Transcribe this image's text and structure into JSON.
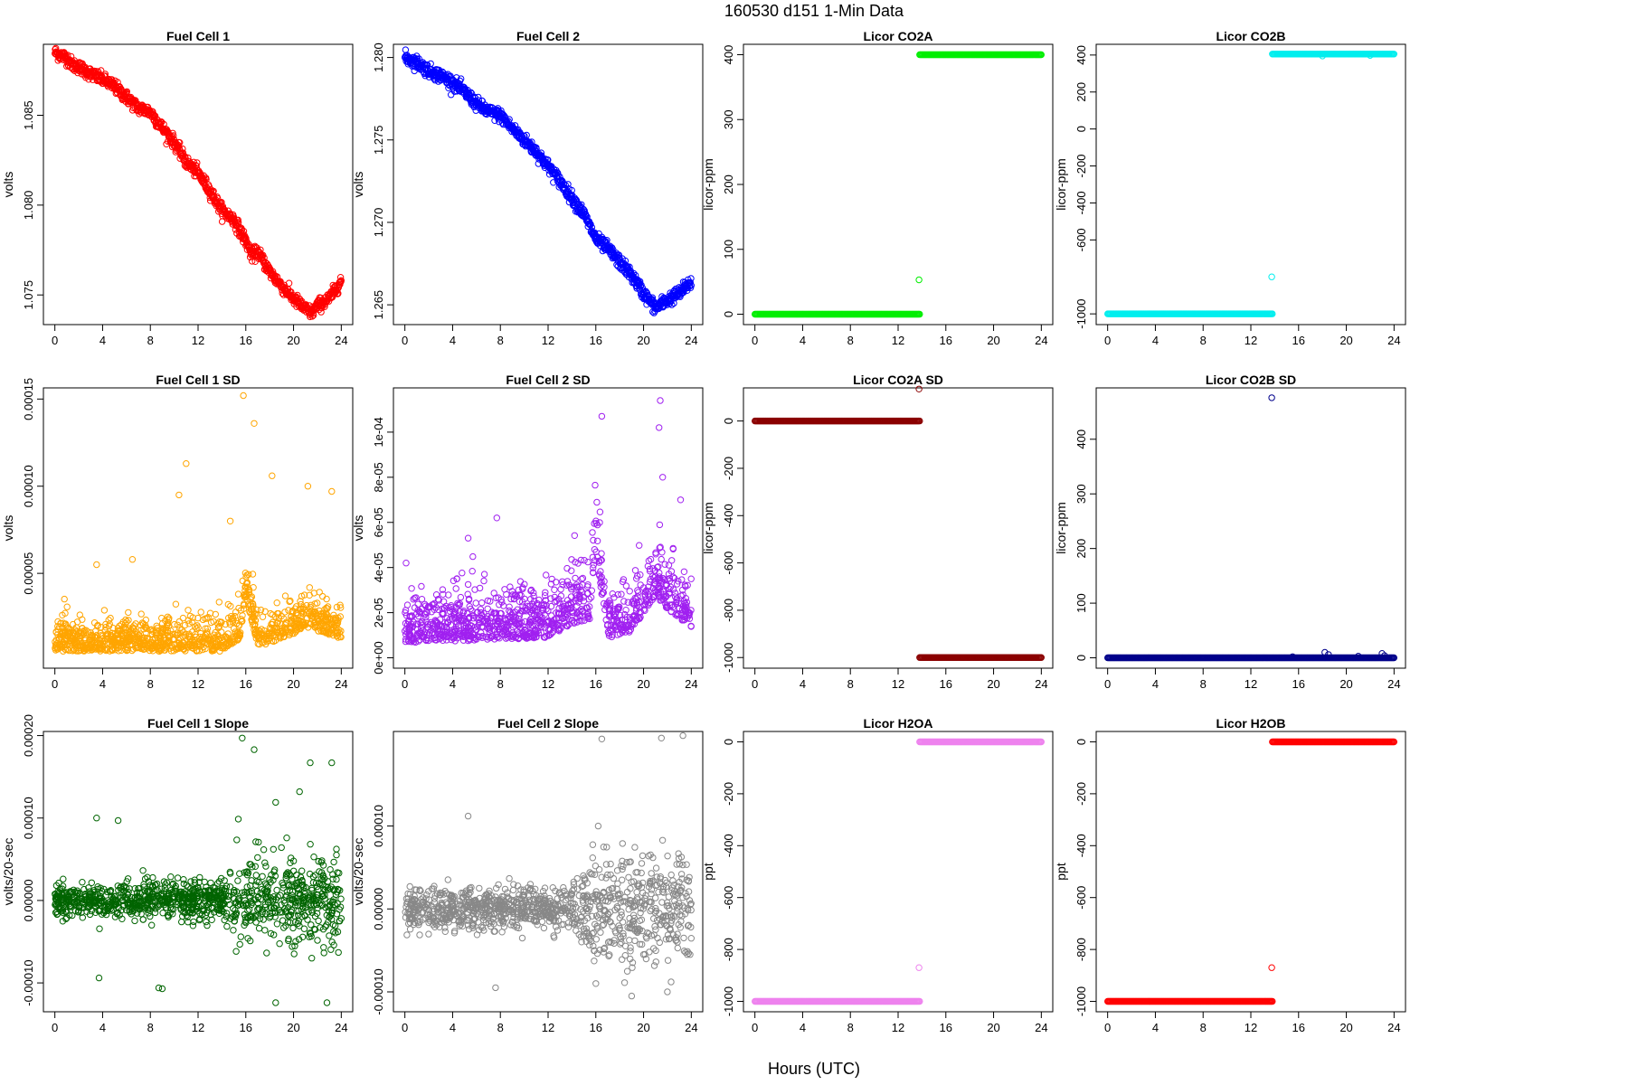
{
  "figure": {
    "title": "160530    d151    1-Min Data",
    "xlabel": "Hours (UTC)"
  },
  "chart_data": [
    {
      "type": "scatter",
      "title": "Fuel Cell 1",
      "ylabel": "volts",
      "color": "#ff0000",
      "xlim": [
        -0.96,
        24.96
      ],
      "ylim": [
        1.07335,
        1.08895
      ],
      "xticks": [
        0,
        4,
        8,
        12,
        16,
        20,
        24
      ],
      "yticks": [
        1.075,
        1.08,
        1.085
      ],
      "ytick_labels": [
        "1.075",
        "1.080",
        "1.085"
      ],
      "trend": [
        [
          0,
          1.0885
        ],
        [
          1,
          1.0882
        ],
        [
          1.5,
          1.0878
        ],
        [
          2,
          1.0877
        ],
        [
          3,
          1.0873
        ],
        [
          4,
          1.087
        ],
        [
          5,
          1.0866
        ],
        [
          6,
          1.086
        ],
        [
          7,
          1.0854
        ],
        [
          8,
          1.0852
        ],
        [
          9,
          1.0843
        ],
        [
          10,
          1.0835
        ],
        [
          11,
          1.0824
        ],
        [
          12,
          1.0818
        ],
        [
          13,
          1.0808
        ],
        [
          14,
          1.0797
        ],
        [
          15,
          1.0792
        ],
        [
          16,
          1.078
        ],
        [
          16.5,
          1.0772
        ],
        [
          17,
          1.0774
        ],
        [
          18,
          1.0763
        ],
        [
          19,
          1.0755
        ],
        [
          20,
          1.0748
        ],
        [
          21,
          1.0742
        ],
        [
          21.5,
          1.074
        ],
        [
          22,
          1.0744
        ],
        [
          23,
          1.0748
        ],
        [
          24,
          1.0758
        ]
      ],
      "noise": 0.00018,
      "markers": "band"
    },
    {
      "type": "scatter",
      "title": "Fuel Cell 2",
      "ylabel": "volts",
      "color": "#0000ff",
      "xlim": [
        -0.96,
        24.96
      ],
      "ylim": [
        1.2638,
        1.2808
      ],
      "xticks": [
        0,
        4,
        8,
        12,
        16,
        20,
        24
      ],
      "yticks": [
        1.265,
        1.27,
        1.275,
        1.28
      ],
      "ytick_labels": [
        "1.265",
        "1.270",
        "1.275",
        "1.280"
      ],
      "trend": [
        [
          0,
          1.28
        ],
        [
          1,
          1.2797
        ],
        [
          2,
          1.2792
        ],
        [
          3,
          1.2789
        ],
        [
          4,
          1.2785
        ],
        [
          5,
          1.2779
        ],
        [
          6,
          1.2772
        ],
        [
          7,
          1.2767
        ],
        [
          8,
          1.2765
        ],
        [
          9,
          1.2757
        ],
        [
          10,
          1.275
        ],
        [
          11,
          1.2743
        ],
        [
          12,
          1.2734
        ],
        [
          13,
          1.2725
        ],
        [
          14,
          1.2715
        ],
        [
          15,
          1.2705
        ],
        [
          16,
          1.269
        ],
        [
          17,
          1.2684
        ],
        [
          18,
          1.2676
        ],
        [
          19,
          1.2668
        ],
        [
          20,
          1.2657
        ],
        [
          21,
          1.2648
        ],
        [
          22,
          1.2653
        ],
        [
          23,
          1.2657
        ],
        [
          24,
          1.2664
        ]
      ],
      "noise": 0.0002,
      "markers": "band"
    },
    {
      "type": "scatter",
      "title": "Licor CO2A",
      "ylabel": "licor-ppm",
      "color": "#00ee00",
      "xlim": [
        -0.96,
        24.96
      ],
      "ylim": [
        -16,
        416
      ],
      "xticks": [
        0,
        4,
        8,
        12,
        16,
        20,
        24
      ],
      "yticks": [
        0,
        100,
        200,
        300,
        400
      ],
      "ytick_labels": [
        "0",
        "100",
        "200",
        "300",
        "400"
      ],
      "segments": [
        {
          "x": [
            0,
            13.8
          ],
          "y": 0
        },
        {
          "x": [
            13.8,
            24
          ],
          "y": 400
        }
      ],
      "outliers": [
        [
          13.75,
          53
        ]
      ]
    },
    {
      "type": "scatter",
      "title": "Licor CO2B",
      "ylabel": "licor-ppm",
      "color": "#00eeee",
      "xlim": [
        -0.96,
        24.96
      ],
      "ylim": [
        -1058,
        458
      ],
      "xticks": [
        0,
        4,
        8,
        12,
        16,
        20,
        24
      ],
      "yticks": [
        -1000,
        -600,
        -400,
        -200,
        0,
        200,
        400
      ],
      "ytick_labels": [
        "-1000",
        "-600",
        "-400",
        "-200",
        "0",
        "200",
        "400"
      ],
      "segments": [
        {
          "x": [
            0,
            13.8
          ],
          "y": -1000
        },
        {
          "x": [
            13.8,
            24
          ],
          "y": 405
        }
      ],
      "outliers": [
        [
          13.75,
          -800
        ],
        [
          18,
          395
        ],
        [
          22,
          398
        ]
      ]
    },
    {
      "type": "scatter",
      "title": "Fuel Cell 1 SD",
      "ylabel": "volts",
      "color": "#ffa500",
      "xlim": [
        -0.96,
        24.96
      ],
      "ylim": [
        -4.4e-06,
        0.0001564
      ],
      "xticks": [
        0,
        4,
        8,
        12,
        16,
        20,
        24
      ],
      "yticks": [
        5e-05,
        0.0001,
        0.00015
      ],
      "ytick_labels": [
        "0.00005",
        "0.00010",
        "0.00015"
      ],
      "cloud_baseline": [
        [
          0,
          8e-06
        ],
        [
          14,
          8e-06
        ],
        [
          15.5,
          1.5e-05
        ],
        [
          16,
          4e-05
        ],
        [
          17,
          1e-05
        ],
        [
          20,
          1.8e-05
        ],
        [
          21,
          2.2e-05
        ],
        [
          24,
          1.5e-05
        ]
      ],
      "cloud_spread": 1.8e-05,
      "outliers": [
        [
          15.8,
          0.000152
        ],
        [
          16.7,
          0.000136
        ],
        [
          11.0,
          0.000113
        ],
        [
          10.4,
          9.5e-05
        ],
        [
          18.2,
          0.000106
        ],
        [
          21.2,
          0.0001
        ],
        [
          23.2,
          9.7e-05
        ],
        [
          6.5,
          5.8e-05
        ],
        [
          3.5,
          5.5e-05
        ],
        [
          14.7,
          8e-05
        ]
      ]
    },
    {
      "type": "scatter",
      "title": "Fuel Cell 2 SD",
      "ylabel": "volts",
      "color": "#a020f0",
      "xlim": [
        -0.96,
        24.96
      ],
      "ylim": [
        -4.6e-06,
        0.0001196
      ],
      "xticks": [
        0,
        4,
        8,
        12,
        16,
        20,
        24
      ],
      "yticks": [
        0,
        2e-05,
        4e-05,
        6e-05,
        8e-05,
        0.0001
      ],
      "ytick_labels": [
        "0e+00",
        "2e-05",
        "4e-05",
        "6e-05",
        "8e-05",
        "1e-04"
      ],
      "cloud_baseline": [
        [
          0,
          1e-05
        ],
        [
          12,
          1.2e-05
        ],
        [
          14,
          1.8e-05
        ],
        [
          15.5,
          2e-05
        ],
        [
          16,
          5e-05
        ],
        [
          17,
          1.2e-05
        ],
        [
          19,
          1.5e-05
        ],
        [
          21,
          3e-05
        ],
        [
          22,
          2.5e-05
        ],
        [
          24,
          1.5e-05
        ]
      ],
      "cloud_spread": 2.2e-05,
      "outliers": [
        [
          16.5,
          0.000107
        ],
        [
          21.4,
          0.000114
        ],
        [
          21.3,
          0.000102
        ],
        [
          21.6,
          8e-05
        ],
        [
          23.1,
          7e-05
        ],
        [
          7.7,
          6.2e-05
        ],
        [
          5.3,
          5.3e-05
        ],
        [
          0.1,
          4.2e-05
        ]
      ]
    },
    {
      "type": "scatter",
      "title": "Licor CO2A SD",
      "ylabel": "licor-ppm",
      "color": "#8b0000",
      "xlim": [
        -0.96,
        24.96
      ],
      "ylim": [
        -1045,
        140
      ],
      "xticks": [
        0,
        4,
        8,
        12,
        16,
        20,
        24
      ],
      "yticks": [
        -1000,
        -800,
        -600,
        -400,
        -200,
        0
      ],
      "ytick_labels": [
        "-1000",
        "-800",
        "-600",
        "-400",
        "-200",
        "0"
      ],
      "segments": [
        {
          "x": [
            0,
            13.8
          ],
          "y": 0
        },
        {
          "x": [
            13.8,
            24
          ],
          "y": -1000
        }
      ],
      "outliers": [
        [
          13.75,
          135
        ]
      ]
    },
    {
      "type": "scatter",
      "title": "Licor CO2B SD",
      "ylabel": "licor-ppm",
      "color": "#00008b",
      "xlim": [
        -0.96,
        24.96
      ],
      "ylim": [
        -19,
        494
      ],
      "xticks": [
        0,
        4,
        8,
        12,
        16,
        20,
        24
      ],
      "yticks": [
        0,
        100,
        200,
        300,
        400
      ],
      "ytick_labels": [
        "0",
        "100",
        "200",
        "300",
        "400"
      ],
      "segments": [
        {
          "x": [
            0,
            24
          ],
          "y": 0
        }
      ],
      "outliers": [
        [
          13.75,
          476
        ],
        [
          18.2,
          10
        ],
        [
          18.5,
          6
        ],
        [
          23.0,
          8
        ],
        [
          23.2,
          4
        ],
        [
          15.5,
          2
        ],
        [
          21,
          3
        ]
      ]
    },
    {
      "type": "scatter",
      "title": "Fuel Cell 1 Slope",
      "ylabel": "volts/20-sec",
      "color": "#006400",
      "xlim": [
        -0.96,
        24.96
      ],
      "ylim": [
        -0.000135,
        0.000205
      ],
      "xticks": [
        0,
        4,
        8,
        12,
        16,
        20,
        24
      ],
      "yticks": [
        -0.0001,
        0,
        0.0001,
        0.0002
      ],
      "ytick_labels": [
        "-0.00010",
        "0.00000",
        "0.00010",
        "0.00020"
      ],
      "cloud_baseline": [
        [
          0,
          0
        ],
        [
          24,
          0
        ]
      ],
      "cloud_spread_profile": [
        [
          0,
          2e-05
        ],
        [
          14,
          2e-05
        ],
        [
          15.5,
          5e-05
        ],
        [
          24,
          5e-05
        ]
      ],
      "outliers": [
        [
          15.7,
          0.000197
        ],
        [
          16.7,
          0.000183
        ],
        [
          21.4,
          0.000167
        ],
        [
          23.2,
          0.000167
        ],
        [
          20.5,
          0.000132
        ],
        [
          18.5,
          0.000119
        ],
        [
          3.5,
          0.0001
        ],
        [
          5.3,
          9.7e-05
        ],
        [
          8.7,
          -0.000106
        ],
        [
          9,
          -0.000107
        ],
        [
          3.7,
          -9.4e-05
        ],
        [
          18.5,
          -0.000124
        ],
        [
          22.8,
          -0.000124
        ]
      ]
    },
    {
      "type": "scatter",
      "title": "Fuel Cell 2 Slope",
      "ylabel": "volts/20-sec",
      "color": "#888888",
      "xlim": [
        -0.96,
        24.96
      ],
      "ylim": [
        -0.000124,
        0.000214
      ],
      "xticks": [
        0,
        4,
        8,
        12,
        16,
        20,
        24
      ],
      "yticks": [
        -0.0001,
        0,
        0.0001
      ],
      "ytick_labels": [
        "-0.00010",
        "0.00000",
        "0.00010"
      ],
      "cloud_baseline": [
        [
          0,
          0
        ],
        [
          24,
          0
        ]
      ],
      "cloud_spread_profile": [
        [
          0,
          2.2e-05
        ],
        [
          14,
          2.5e-05
        ],
        [
          15.5,
          5.5e-05
        ],
        [
          24,
          5.5e-05
        ]
      ],
      "outliers": [
        [
          16.5,
          0.000205
        ],
        [
          21.5,
          0.000206
        ],
        [
          23.3,
          0.000209
        ],
        [
          5.3,
          0.000112
        ],
        [
          16.2,
          0.0001
        ],
        [
          7.6,
          -9.5e-05
        ],
        [
          19,
          -0.000105
        ],
        [
          16,
          -9e-05
        ],
        [
          22,
          -0.0001
        ]
      ]
    },
    {
      "type": "scatter",
      "title": "Licor H2OA",
      "ylabel": "ppt",
      "color": "#ee82ee",
      "xlim": [
        -0.96,
        24.96
      ],
      "ylim": [
        -1040,
        40
      ],
      "xticks": [
        0,
        4,
        8,
        12,
        16,
        20,
        24
      ],
      "yticks": [
        -1000,
        -800,
        -600,
        -400,
        -200,
        0
      ],
      "ytick_labels": [
        "-1000",
        "-800",
        "-600",
        "-400",
        "-200",
        "0"
      ],
      "segments": [
        {
          "x": [
            0,
            13.8
          ],
          "y": -1000
        },
        {
          "x": [
            13.8,
            24
          ],
          "y": 0
        }
      ],
      "outliers": [
        [
          13.75,
          -870
        ]
      ]
    },
    {
      "type": "scatter",
      "title": "Licor H2OB",
      "ylabel": "ppt",
      "color": "#ff0000",
      "xlim": [
        -0.96,
        24.96
      ],
      "ylim": [
        -1040,
        40
      ],
      "xticks": [
        0,
        4,
        8,
        12,
        16,
        20,
        24
      ],
      "yticks": [
        -1000,
        -800,
        -600,
        -400,
        -200,
        0
      ],
      "ytick_labels": [
        "-1000",
        "-800",
        "-600",
        "-400",
        "-200",
        "0"
      ],
      "segments": [
        {
          "x": [
            0,
            13.8
          ],
          "y": -1000
        },
        {
          "x": [
            13.8,
            24
          ],
          "y": 0
        }
      ],
      "outliers": [
        [
          13.75,
          -870
        ]
      ]
    }
  ]
}
